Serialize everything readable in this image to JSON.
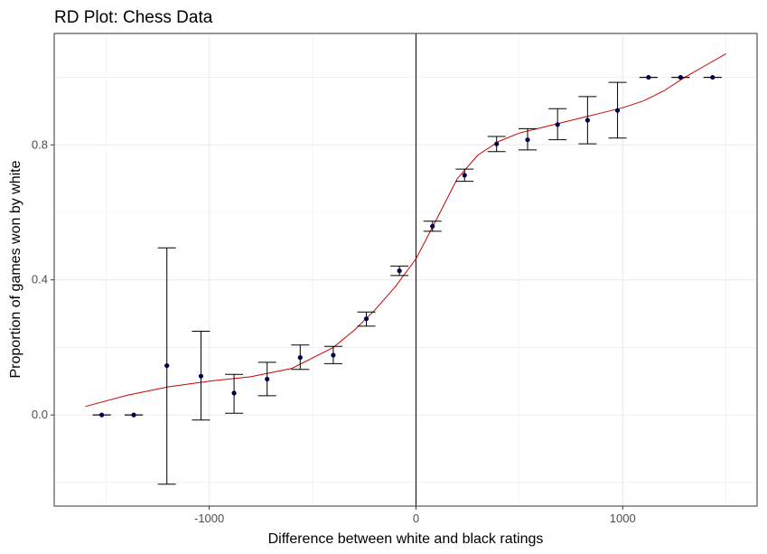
{
  "chart_data": {
    "type": "scatter",
    "title": "RD Plot: Chess Data",
    "xlabel": "Difference between white and black ratings",
    "ylabel": "Proportion of games won by white",
    "xlim": [
      -1750,
      1650
    ],
    "ylim": [
      -0.27,
      1.13
    ],
    "x_ticks": [
      -1000,
      0,
      1000
    ],
    "x_tick_labels": [
      "-1000",
      "0",
      "1000"
    ],
    "y_ticks": [
      0.0,
      0.4,
      0.8
    ],
    "y_tick_labels": [
      "0.0",
      "0.4",
      "0.8"
    ],
    "grid": true,
    "cutoff": 0,
    "colors": {
      "points": "#00004d",
      "fit": "#cc0000",
      "errorbars": "#000000",
      "grid": "#ebebeb",
      "panel_border": "#333333"
    },
    "points": [
      {
        "x": -1520,
        "y": 0.0,
        "lo": 0.0,
        "hi": 0.0
      },
      {
        "x": -1365,
        "y": 0.0,
        "lo": 0.0,
        "hi": 0.0
      },
      {
        "x": -1205,
        "y": 0.146,
        "lo": -0.205,
        "hi": 0.495
      },
      {
        "x": -1040,
        "y": 0.115,
        "lo": -0.015,
        "hi": 0.248
      },
      {
        "x": -880,
        "y": 0.065,
        "lo": 0.005,
        "hi": 0.12
      },
      {
        "x": -720,
        "y": 0.106,
        "lo": 0.057,
        "hi": 0.156
      },
      {
        "x": -560,
        "y": 0.17,
        "lo": 0.135,
        "hi": 0.207
      },
      {
        "x": -400,
        "y": 0.177,
        "lo": 0.152,
        "hi": 0.203
      },
      {
        "x": -240,
        "y": 0.285,
        "lo": 0.263,
        "hi": 0.305
      },
      {
        "x": -80,
        "y": 0.427,
        "lo": 0.413,
        "hi": 0.441
      },
      {
        "x": 80,
        "y": 0.559,
        "lo": 0.544,
        "hi": 0.574
      },
      {
        "x": 235,
        "y": 0.71,
        "lo": 0.692,
        "hi": 0.728
      },
      {
        "x": 390,
        "y": 0.803,
        "lo": 0.78,
        "hi": 0.825
      },
      {
        "x": 540,
        "y": 0.815,
        "lo": 0.785,
        "hi": 0.848
      },
      {
        "x": 685,
        "y": 0.86,
        "lo": 0.815,
        "hi": 0.907
      },
      {
        "x": 830,
        "y": 0.873,
        "lo": 0.803,
        "hi": 0.943
      },
      {
        "x": 975,
        "y": 0.902,
        "lo": 0.82,
        "hi": 0.985
      },
      {
        "x": 1125,
        "y": 1.0,
        "lo": 1.0,
        "hi": 1.0
      },
      {
        "x": 1280,
        "y": 1.0,
        "lo": 1.0,
        "hi": 1.0
      },
      {
        "x": 1435,
        "y": 1.0,
        "lo": 1.0,
        "hi": 1.0
      }
    ],
    "fit_left": {
      "x": [
        -1600,
        -1400,
        -1200,
        -1000,
        -800,
        -600,
        -400,
        -300,
        -200,
        -100,
        0
      ],
      "y": [
        0.025,
        0.058,
        0.083,
        0.1,
        0.113,
        0.138,
        0.2,
        0.25,
        0.31,
        0.38,
        0.462
      ]
    },
    "fit_right": {
      "x": [
        0,
        100,
        200,
        300,
        400,
        500,
        600,
        700,
        800,
        900,
        1000,
        1100,
        1200,
        1300,
        1400,
        1500
      ],
      "y": [
        0.462,
        0.58,
        0.7,
        0.77,
        0.81,
        0.835,
        0.85,
        0.865,
        0.88,
        0.895,
        0.91,
        0.93,
        0.96,
        1.0,
        1.035,
        1.07
      ]
    }
  }
}
